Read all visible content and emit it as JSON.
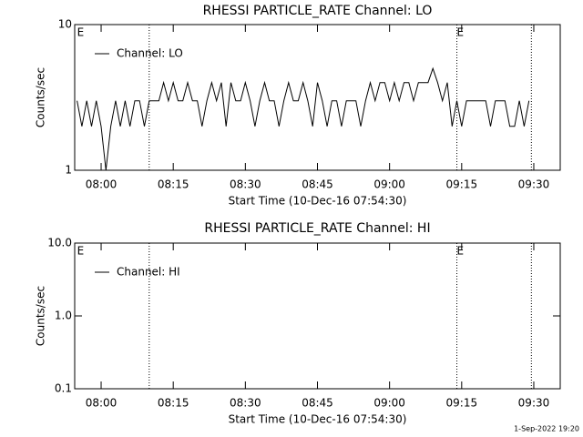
{
  "chart_data": [
    {
      "type": "line",
      "title": "RHESSI PARTICLE_RATE Channel: LO",
      "xlabel": "Start Time (10-Dec-16 07:54:30)",
      "ylabel": "Counts/sec",
      "log_y": true,
      "ylim": [
        1,
        10
      ],
      "yticks": [
        1,
        10
      ],
      "xlim": [
        "07:54:30",
        "09:35:30"
      ],
      "xticks": [
        "08:00",
        "08:15",
        "08:30",
        "08:45",
        "09:00",
        "09:15",
        "09:30"
      ],
      "legend": "top-left",
      "vlines": [
        "08:10",
        "09:14",
        "09:29:30"
      ],
      "annotations": [
        {
          "text": "E",
          "x": "07:55"
        },
        {
          "text": "E",
          "x": "09:14"
        }
      ],
      "x": [
        "07:55",
        "07:56",
        "07:57",
        "07:58",
        "07:59",
        "08:00",
        "08:01",
        "08:02",
        "08:03",
        "08:04",
        "08:05",
        "08:06",
        "08:07",
        "08:08",
        "08:09",
        "08:10",
        "08:11",
        "08:12",
        "08:13",
        "08:14",
        "08:15",
        "08:16",
        "08:17",
        "08:18",
        "08:19",
        "08:20",
        "08:21",
        "08:22",
        "08:23",
        "08:24",
        "08:25",
        "08:26",
        "08:27",
        "08:28",
        "08:29",
        "08:30",
        "08:31",
        "08:32",
        "08:33",
        "08:34",
        "08:35",
        "08:36",
        "08:37",
        "08:38",
        "08:39",
        "08:40",
        "08:41",
        "08:42",
        "08:43",
        "08:44",
        "08:45",
        "08:46",
        "08:47",
        "08:48",
        "08:49",
        "08:50",
        "08:51",
        "08:52",
        "08:53",
        "08:54",
        "08:55",
        "08:56",
        "08:57",
        "08:58",
        "08:59",
        "09:00",
        "09:01",
        "09:02",
        "09:03",
        "09:04",
        "09:05",
        "09:06",
        "09:07",
        "09:08",
        "09:09",
        "09:10",
        "09:11",
        "09:12",
        "09:13",
        "09:14",
        "09:15",
        "09:16",
        "09:17",
        "09:18",
        "09:19",
        "09:20",
        "09:21",
        "09:22",
        "09:23",
        "09:24",
        "09:25",
        "09:26",
        "09:27",
        "09:28",
        "09:29"
      ],
      "series": [
        {
          "name": "Channel: LO",
          "color": "#000000",
          "values": [
            3,
            2,
            3,
            2,
            3,
            2,
            1,
            2,
            3,
            2,
            3,
            2,
            3,
            3,
            2,
            3,
            3,
            3,
            4,
            3,
            4,
            3,
            3,
            4,
            3,
            3,
            2,
            3,
            4,
            3,
            4,
            2,
            4,
            3,
            3,
            4,
            3,
            2,
            3,
            4,
            3,
            3,
            2,
            3,
            4,
            3,
            3,
            4,
            3,
            2,
            4,
            3,
            2,
            3,
            3,
            2,
            3,
            3,
            3,
            2,
            3,
            4,
            3,
            4,
            4,
            3,
            4,
            3,
            4,
            4,
            3,
            4,
            4,
            4,
            5,
            4,
            3,
            4,
            2,
            3,
            2,
            3,
            3,
            3,
            3,
            3,
            2,
            3,
            3,
            3,
            2,
            2,
            3,
            2,
            3
          ]
        }
      ]
    },
    {
      "type": "line",
      "title": "RHESSI PARTICLE_RATE Channel: HI",
      "xlabel": "Start Time (10-Dec-16 07:54:30)",
      "ylabel": "Counts/sec",
      "log_y": true,
      "ylim": [
        0.1,
        10
      ],
      "yticks": [
        {
          "value": 0.1,
          "label": "0.1"
        },
        {
          "value": 1,
          "label": "1.0"
        },
        {
          "value": 10,
          "label": "10.0"
        }
      ],
      "xlim": [
        "07:54:30",
        "09:35:30"
      ],
      "xticks": [
        "08:00",
        "08:15",
        "08:30",
        "08:45",
        "09:00",
        "09:15",
        "09:30"
      ],
      "legend": "top-left",
      "vlines": [
        "08:10",
        "09:14",
        "09:29:30"
      ],
      "annotations": [
        {
          "text": "E",
          "x": "07:55"
        },
        {
          "text": "E",
          "x": "09:14"
        }
      ],
      "x": [],
      "series": [
        {
          "name": "Channel: HI",
          "color": "#000000",
          "values": []
        }
      ]
    }
  ],
  "footer": "1-Sep-2022 19:20"
}
